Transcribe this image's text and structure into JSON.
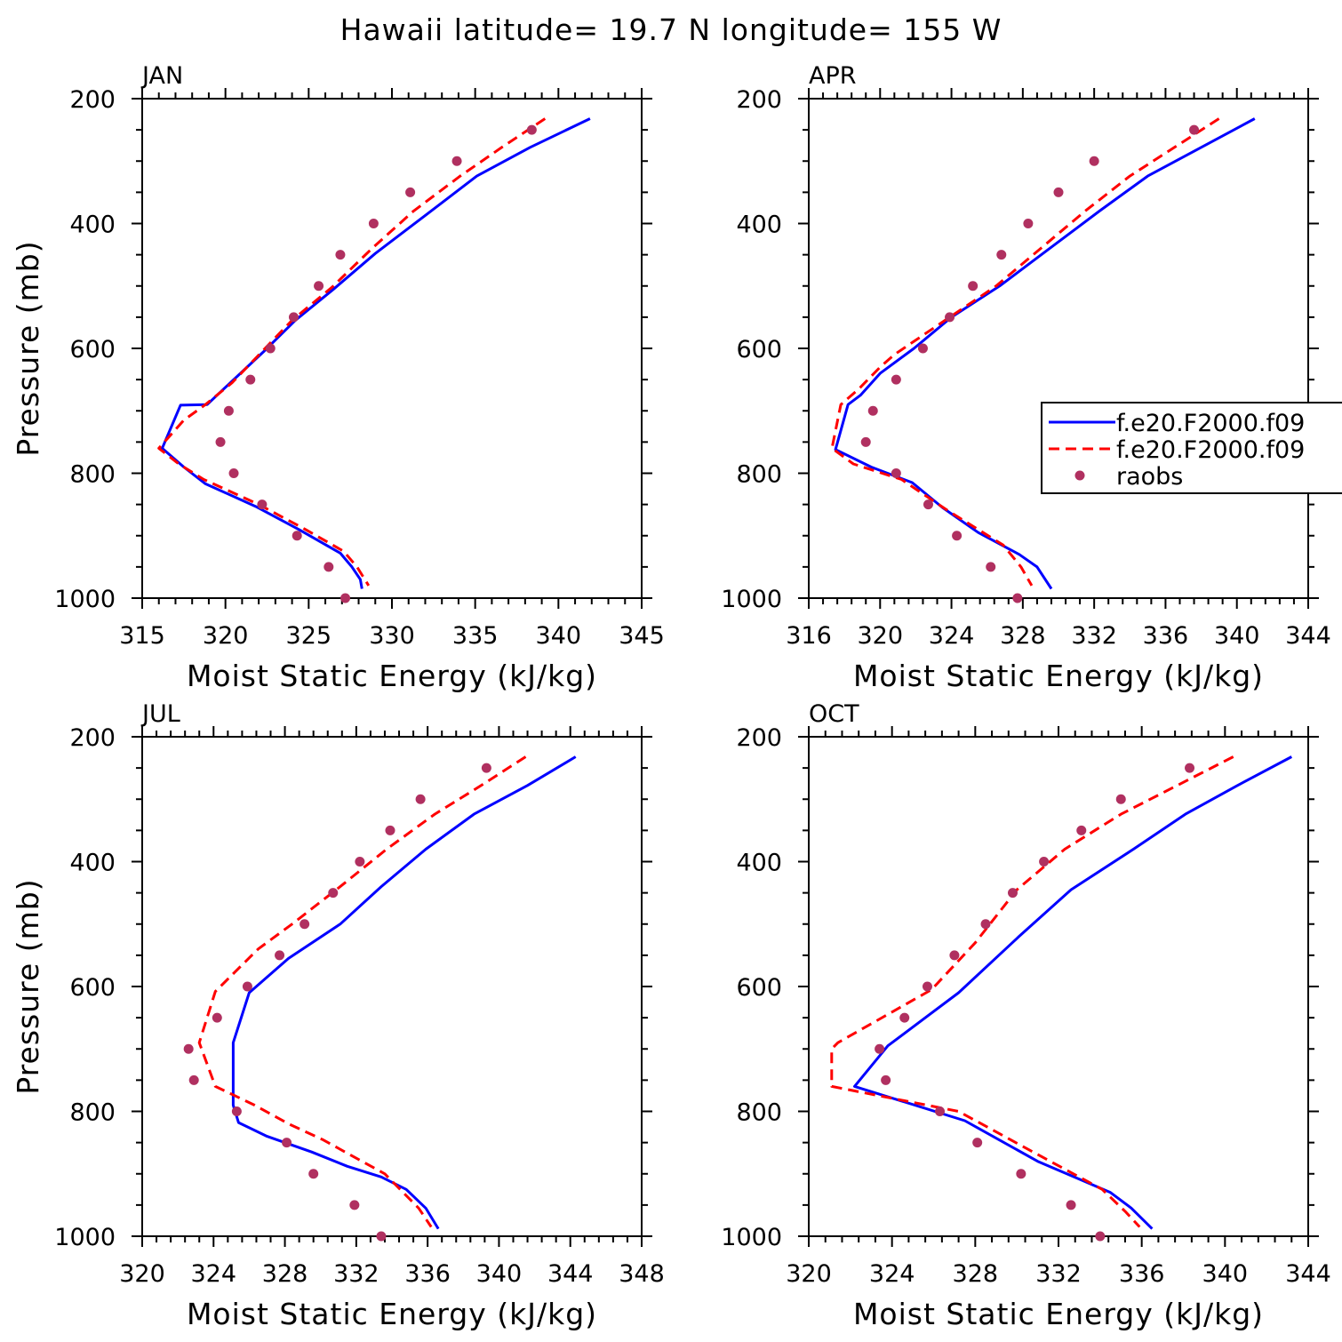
{
  "title": "Hawaii  latitude= 19.7 N longitude= 155 W",
  "colors": {
    "model1": "#0000ff",
    "model2": "#ff0000",
    "obs": "#b03060"
  },
  "legend": {
    "entries": [
      {
        "label": "f.e20.F2000.f09",
        "style": "solid",
        "color": "#0000ff"
      },
      {
        "label": "f.e20.F2000.f09",
        "style": "dashed",
        "color": "#ff0000"
      },
      {
        "label": "raobs",
        "style": "dot",
        "color": "#b03060"
      }
    ]
  },
  "chart_data": [
    {
      "type": "line",
      "panel_label": "JAN",
      "xlabel": "Moist Static Energy (kJ/kg)",
      "ylabel": "Pressure (mb)",
      "xlim": [
        315,
        345
      ],
      "xticks": [
        315,
        320,
        325,
        330,
        335,
        340,
        345
      ],
      "ylim": [
        1000,
        200
      ],
      "yticks": [
        200,
        400,
        600,
        800,
        1000
      ],
      "series": [
        {
          "name": "f.e20.F2000.f09",
          "style": "solid",
          "x": [
            341.9,
            338.3,
            335.1,
            332.0,
            329.0,
            326.5,
            324.2,
            322.3,
            320.5,
            318.9,
            317.3,
            316.2,
            317.5,
            318.8,
            321.8,
            324.4,
            326.9,
            327.6,
            328.1,
            328.2
          ],
          "y": [
            232,
            278,
            324,
            387,
            448,
            505,
            555,
            605,
            650,
            690,
            691,
            760,
            790,
            817,
            853,
            890,
            928,
            950,
            970,
            985
          ]
        },
        {
          "name": "f.e20.F2000.f09",
          "style": "dashed",
          "x": [
            339.2,
            336.6,
            334.1,
            331.3,
            328.8,
            326.4,
            324.0,
            322.2,
            320.4,
            318.8,
            317.5,
            316.0,
            317.2,
            318.7,
            322.0,
            324.8,
            327.1,
            327.9,
            328.6
          ],
          "y": [
            232,
            278,
            324,
            380,
            440,
            502,
            555,
            605,
            655,
            690,
            715,
            760,
            785,
            810,
            850,
            890,
            925,
            950,
            980
          ]
        },
        {
          "name": "raobs",
          "style": "dot",
          "x": [
            338.4,
            333.9,
            331.1,
            328.9,
            326.9,
            325.6,
            324.1,
            322.7,
            321.5,
            320.2,
            319.7,
            320.5,
            322.2,
            324.3,
            326.2,
            327.2
          ],
          "y": [
            250,
            300,
            350,
            400,
            450,
            500,
            550,
            600,
            650,
            700,
            750,
            800,
            850,
            900,
            950,
            1000
          ]
        }
      ]
    },
    {
      "type": "line",
      "panel_label": "APR",
      "xlabel": "Moist Static Energy (kJ/kg)",
      "ylabel": "",
      "xlim": [
        316,
        344
      ],
      "xticks": [
        316,
        320,
        324,
        328,
        332,
        336,
        340,
        344
      ],
      "ylim": [
        1000,
        200
      ],
      "yticks": [
        200,
        400,
        600,
        800,
        1000
      ],
      "series": [
        {
          "name": "f.e20.F2000.f09",
          "style": "solid",
          "x": [
            341.0,
            338.0,
            335.0,
            332.3,
            329.5,
            326.7,
            324.0,
            321.9,
            320.0,
            318.9,
            318.2,
            317.5,
            319.5,
            321.8,
            323.5,
            325.5,
            327.8,
            328.8,
            329.6
          ],
          "y": [
            232,
            278,
            324,
            380,
            440,
            500,
            550,
            600,
            640,
            675,
            690,
            762,
            790,
            815,
            855,
            895,
            930,
            950,
            985
          ]
        },
        {
          "name": "f.e20.F2000.f09",
          "style": "dashed",
          "x": [
            339.0,
            336.5,
            334.0,
            331.5,
            329.0,
            326.5,
            323.9,
            320.8,
            320.0,
            318.8,
            317.8,
            317.3,
            318.5,
            321.2,
            323.8,
            326.9,
            327.9,
            328.5
          ],
          "y": [
            232,
            278,
            324,
            380,
            440,
            500,
            550,
            610,
            630,
            665,
            690,
            760,
            785,
            810,
            860,
            915,
            950,
            980
          ]
        },
        {
          "name": "raobs",
          "style": "dot",
          "x": [
            337.6,
            332.0,
            330.0,
            328.3,
            326.8,
            325.2,
            323.9,
            322.4,
            320.9,
            319.6,
            319.2,
            320.9,
            322.7,
            324.3,
            326.2,
            327.7
          ],
          "y": [
            250,
            300,
            350,
            400,
            450,
            500,
            550,
            600,
            650,
            700,
            750,
            800,
            850,
            900,
            950,
            1000
          ]
        }
      ]
    },
    {
      "type": "line",
      "panel_label": "JUL",
      "xlabel": "Moist Static Energy (kJ/kg)",
      "ylabel": "Pressure (mb)",
      "xlim": [
        320,
        348
      ],
      "xticks": [
        320,
        324,
        328,
        332,
        336,
        340,
        344,
        348
      ],
      "ylim": [
        1000,
        200
      ],
      "yticks": [
        200,
        400,
        600,
        800,
        1000
      ],
      "series": [
        {
          "name": "f.e20.F2000.f09",
          "style": "solid",
          "x": [
            344.3,
            341.6,
            338.6,
            335.9,
            333.4,
            331.1,
            328.2,
            326.0,
            325.1,
            325.1,
            325.1,
            325.4,
            327.0,
            329.5,
            331.5,
            333.4,
            334.8,
            335.9,
            336.6
          ],
          "y": [
            232,
            278,
            324,
            380,
            440,
            500,
            555,
            610,
            690,
            760,
            790,
            818,
            840,
            865,
            888,
            905,
            925,
            955,
            988
          ]
        },
        {
          "name": "f.e20.F2000.f09",
          "style": "dashed",
          "x": [
            341.5,
            339.0,
            336.4,
            333.7,
            331.1,
            328.4,
            326.5,
            324.1,
            323.2,
            324.1,
            326.3,
            328.2,
            330.1,
            333.6,
            335.5,
            336.2
          ],
          "y": [
            232,
            278,
            324,
            380,
            440,
            500,
            540,
            608,
            690,
            760,
            790,
            820,
            845,
            900,
            955,
            985
          ]
        },
        {
          "name": "raobs",
          "style": "dot",
          "x": [
            339.3,
            335.6,
            333.9,
            332.2,
            330.7,
            329.1,
            327.7,
            325.9,
            324.2,
            322.6,
            322.9,
            325.3,
            328.1,
            329.6,
            331.9,
            333.4
          ],
          "y": [
            250,
            300,
            350,
            400,
            450,
            500,
            550,
            600,
            650,
            700,
            750,
            800,
            850,
            900,
            950,
            1000
          ]
        }
      ]
    },
    {
      "type": "line",
      "panel_label": "OCT",
      "xlabel": "Moist Static Energy (kJ/kg)",
      "ylabel": "",
      "xlim": [
        320,
        344
      ],
      "xticks": [
        320,
        324,
        328,
        332,
        336,
        340,
        344
      ],
      "ylim": [
        1000,
        200
      ],
      "yticks": [
        200,
        400,
        600,
        800,
        1000
      ],
      "series": [
        {
          "name": "f.e20.F2000.f09",
          "style": "solid",
          "x": [
            343.2,
            340.6,
            338.1,
            335.6,
            332.6,
            330.1,
            327.2,
            323.8,
            322.2,
            327.5,
            331.0,
            334.5,
            335.5,
            336.5
          ],
          "y": [
            232,
            278,
            324,
            380,
            445,
            520,
            610,
            695,
            760,
            815,
            880,
            930,
            955,
            988
          ]
        },
        {
          "name": "f.e20.F2000.f09",
          "style": "dashed",
          "x": [
            340.4,
            337.7,
            335.0,
            332.3,
            330.0,
            328.0,
            325.9,
            321.4,
            321.1,
            321.1,
            327.2,
            330.5,
            334.1,
            335.2,
            335.9
          ],
          "y": [
            232,
            278,
            324,
            380,
            445,
            530,
            605,
            690,
            700,
            760,
            800,
            860,
            925,
            960,
            985
          ]
        },
        {
          "name": "raobs",
          "style": "dot",
          "x": [
            338.3,
            335.0,
            333.1,
            331.3,
            329.8,
            328.5,
            327.0,
            325.7,
            324.6,
            323.4,
            323.7,
            326.3,
            328.1,
            330.2,
            332.6,
            334.0
          ],
          "y": [
            250,
            300,
            350,
            400,
            450,
            500,
            550,
            600,
            650,
            700,
            750,
            800,
            850,
            900,
            950,
            1000
          ]
        }
      ]
    }
  ]
}
